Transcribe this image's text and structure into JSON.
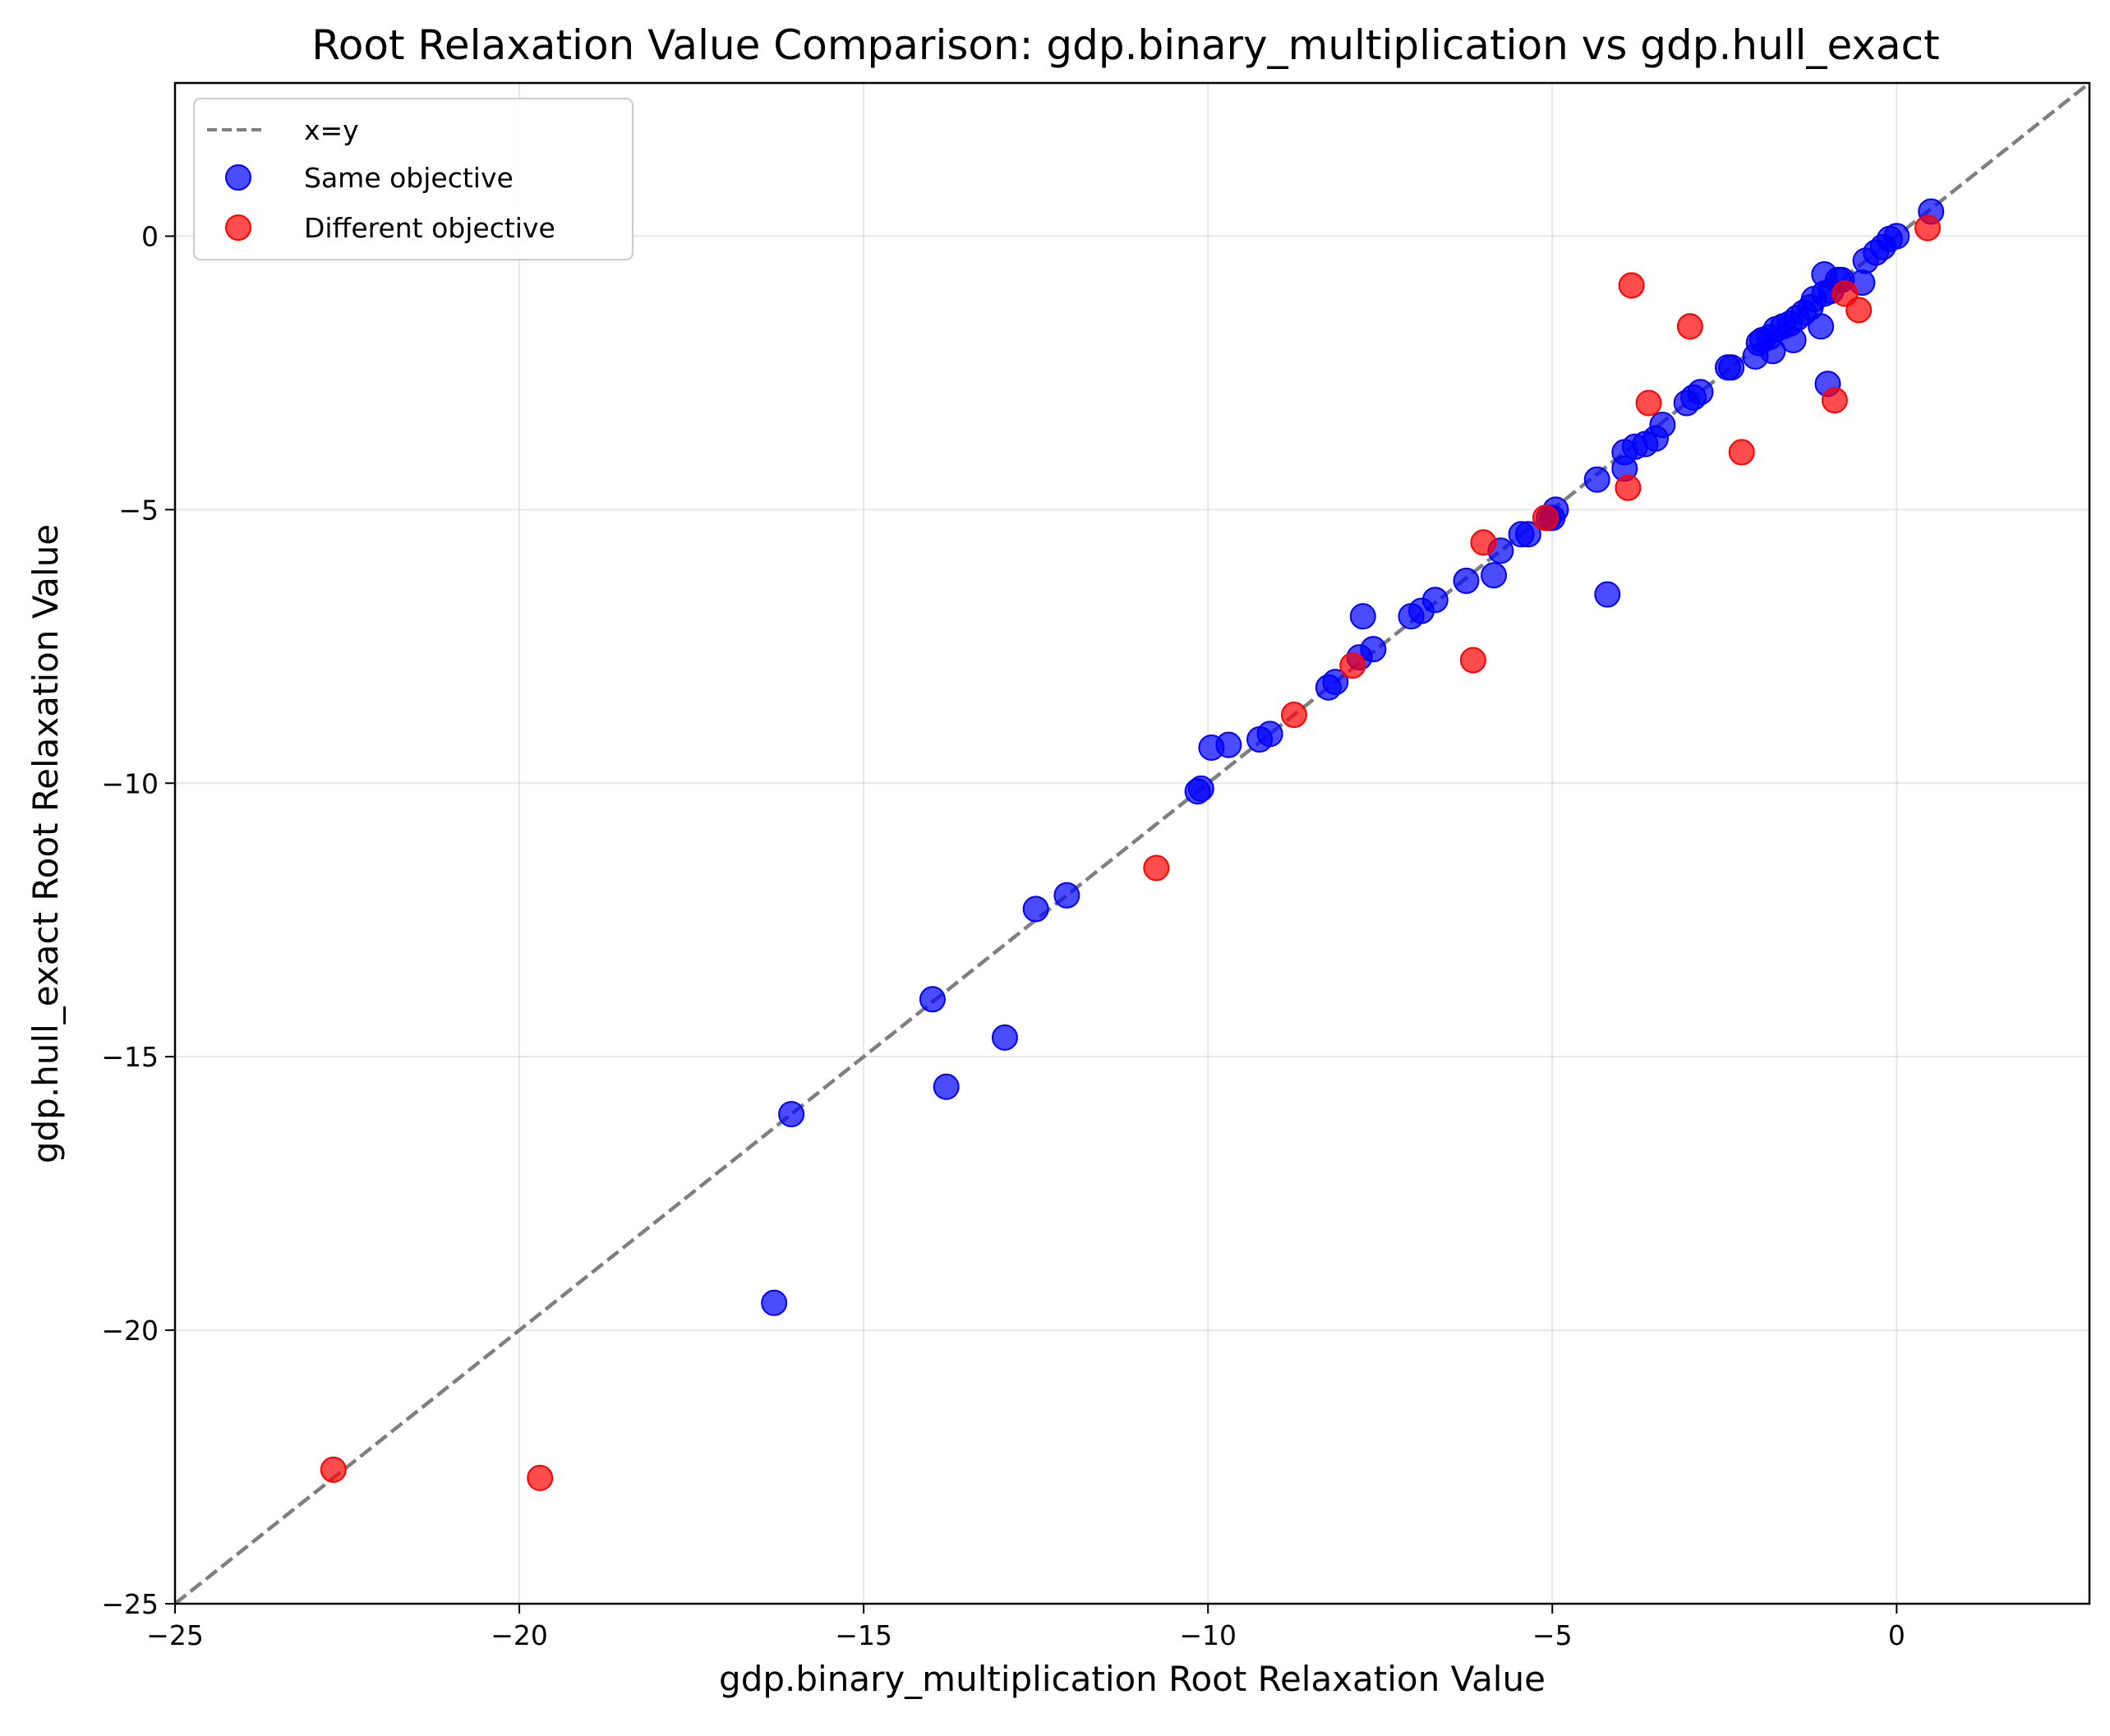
{
  "chart_data": {
    "type": "scatter",
    "title": "Root Relaxation Value Comparison: gdp.binary_multiplication vs gdp.hull_exact",
    "xlabel": "gdp.binary_multiplication Root Relaxation Value",
    "ylabel": "gdp.hull_exact Root Relaxation Value",
    "xlim": [
      -25,
      2.8
    ],
    "ylim": [
      -25,
      2.8
    ],
    "xticks": [
      -25,
      -20,
      -15,
      -10,
      -5,
      0
    ],
    "yticks": [
      -25,
      -20,
      -15,
      -10,
      -5,
      0
    ],
    "xtick_labels": [
      "−25",
      "−20",
      "−15",
      "−10",
      "−5",
      "0"
    ],
    "ytick_labels": [
      "−25",
      "−20",
      "−15",
      "−10",
      "−5",
      "0"
    ],
    "grid": true,
    "legend_position": "top-left",
    "reference_line": {
      "name": "x=y",
      "color": "#7f7f7f",
      "style": "dashed"
    },
    "series": [
      {
        "name": "Same objective",
        "color": "#0000ff",
        "points": [
          [
            -16.3,
            -19.5
          ],
          [
            -16.05,
            -16.05
          ],
          [
            -13.8,
            -15.55
          ],
          [
            -14.0,
            -13.95
          ],
          [
            -12.95,
            -14.65
          ],
          [
            -12.5,
            -12.3
          ],
          [
            -12.05,
            -12.05
          ],
          [
            -10.15,
            -10.15
          ],
          [
            -10.1,
            -10.1
          ],
          [
            -9.95,
            -9.35
          ],
          [
            -9.7,
            -9.3
          ],
          [
            -9.25,
            -9.2
          ],
          [
            -9.1,
            -9.1
          ],
          [
            -8.25,
            -8.25
          ],
          [
            -8.15,
            -8.15
          ],
          [
            -7.8,
            -7.7
          ],
          [
            -7.6,
            -7.55
          ],
          [
            -7.75,
            -6.95
          ],
          [
            -7.05,
            -6.95
          ],
          [
            -6.9,
            -6.85
          ],
          [
            -6.7,
            -6.65
          ],
          [
            -6.25,
            -6.3
          ],
          [
            -5.85,
            -6.2
          ],
          [
            -5.75,
            -5.75
          ],
          [
            -5.45,
            -5.45
          ],
          [
            -5.35,
            -5.45
          ],
          [
            -5.05,
            -5.15
          ],
          [
            -4.95,
            -5.0
          ],
          [
            -5.0,
            -5.15
          ],
          [
            -4.35,
            -4.45
          ],
          [
            -4.2,
            -6.55
          ],
          [
            -3.95,
            -4.25
          ],
          [
            -3.95,
            -3.95
          ],
          [
            -3.8,
            -3.85
          ],
          [
            -3.65,
            -3.8
          ],
          [
            -3.5,
            -3.7
          ],
          [
            -3.4,
            -3.45
          ],
          [
            -3.05,
            -3.05
          ],
          [
            -2.95,
            -2.95
          ],
          [
            -2.85,
            -2.85
          ],
          [
            -2.45,
            -2.4
          ],
          [
            -2.4,
            -2.4
          ],
          [
            -2.05,
            -2.2
          ],
          [
            -2.0,
            -1.95
          ],
          [
            -1.95,
            -1.9
          ],
          [
            -1.85,
            -1.85
          ],
          [
            -1.8,
            -2.1
          ],
          [
            -1.75,
            -1.7
          ],
          [
            -1.65,
            -1.65
          ],
          [
            -1.55,
            -1.6
          ],
          [
            -1.5,
            -1.9
          ],
          [
            -1.45,
            -1.5
          ],
          [
            -1.35,
            -1.4
          ],
          [
            -1.25,
            -1.3
          ],
          [
            -1.2,
            -1.15
          ],
          [
            -1.1,
            -1.65
          ],
          [
            -1.05,
            -1.05
          ],
          [
            -1.0,
            -2.7
          ],
          [
            -0.95,
            -1.0
          ],
          [
            -0.85,
            -0.8
          ],
          [
            -1.05,
            -0.7
          ],
          [
            -0.8,
            -0.8
          ],
          [
            -0.5,
            -0.85
          ],
          [
            -0.45,
            -0.45
          ],
          [
            -0.3,
            -0.3
          ],
          [
            -0.2,
            -0.2
          ],
          [
            -0.1,
            -0.05
          ],
          [
            0.0,
            0.0
          ],
          [
            0.5,
            0.45
          ]
        ]
      },
      {
        "name": "Different objective",
        "color": "#ff0000",
        "points": [
          [
            -22.7,
            -22.55
          ],
          [
            -19.7,
            -22.7
          ],
          [
            -10.75,
            -11.55
          ],
          [
            -8.75,
            -8.75
          ],
          [
            -7.9,
            -7.85
          ],
          [
            -6.15,
            -7.75
          ],
          [
            -6.0,
            -5.6
          ],
          [
            -5.1,
            -5.15
          ],
          [
            -3.9,
            -4.6
          ],
          [
            -3.85,
            -0.9
          ],
          [
            -3.6,
            -3.05
          ],
          [
            -3.0,
            -1.65
          ],
          [
            -2.25,
            -3.95
          ],
          [
            -0.9,
            -3.0
          ],
          [
            -0.75,
            -1.05
          ],
          [
            -0.55,
            -1.35
          ],
          [
            0.45,
            0.15
          ]
        ]
      }
    ]
  }
}
